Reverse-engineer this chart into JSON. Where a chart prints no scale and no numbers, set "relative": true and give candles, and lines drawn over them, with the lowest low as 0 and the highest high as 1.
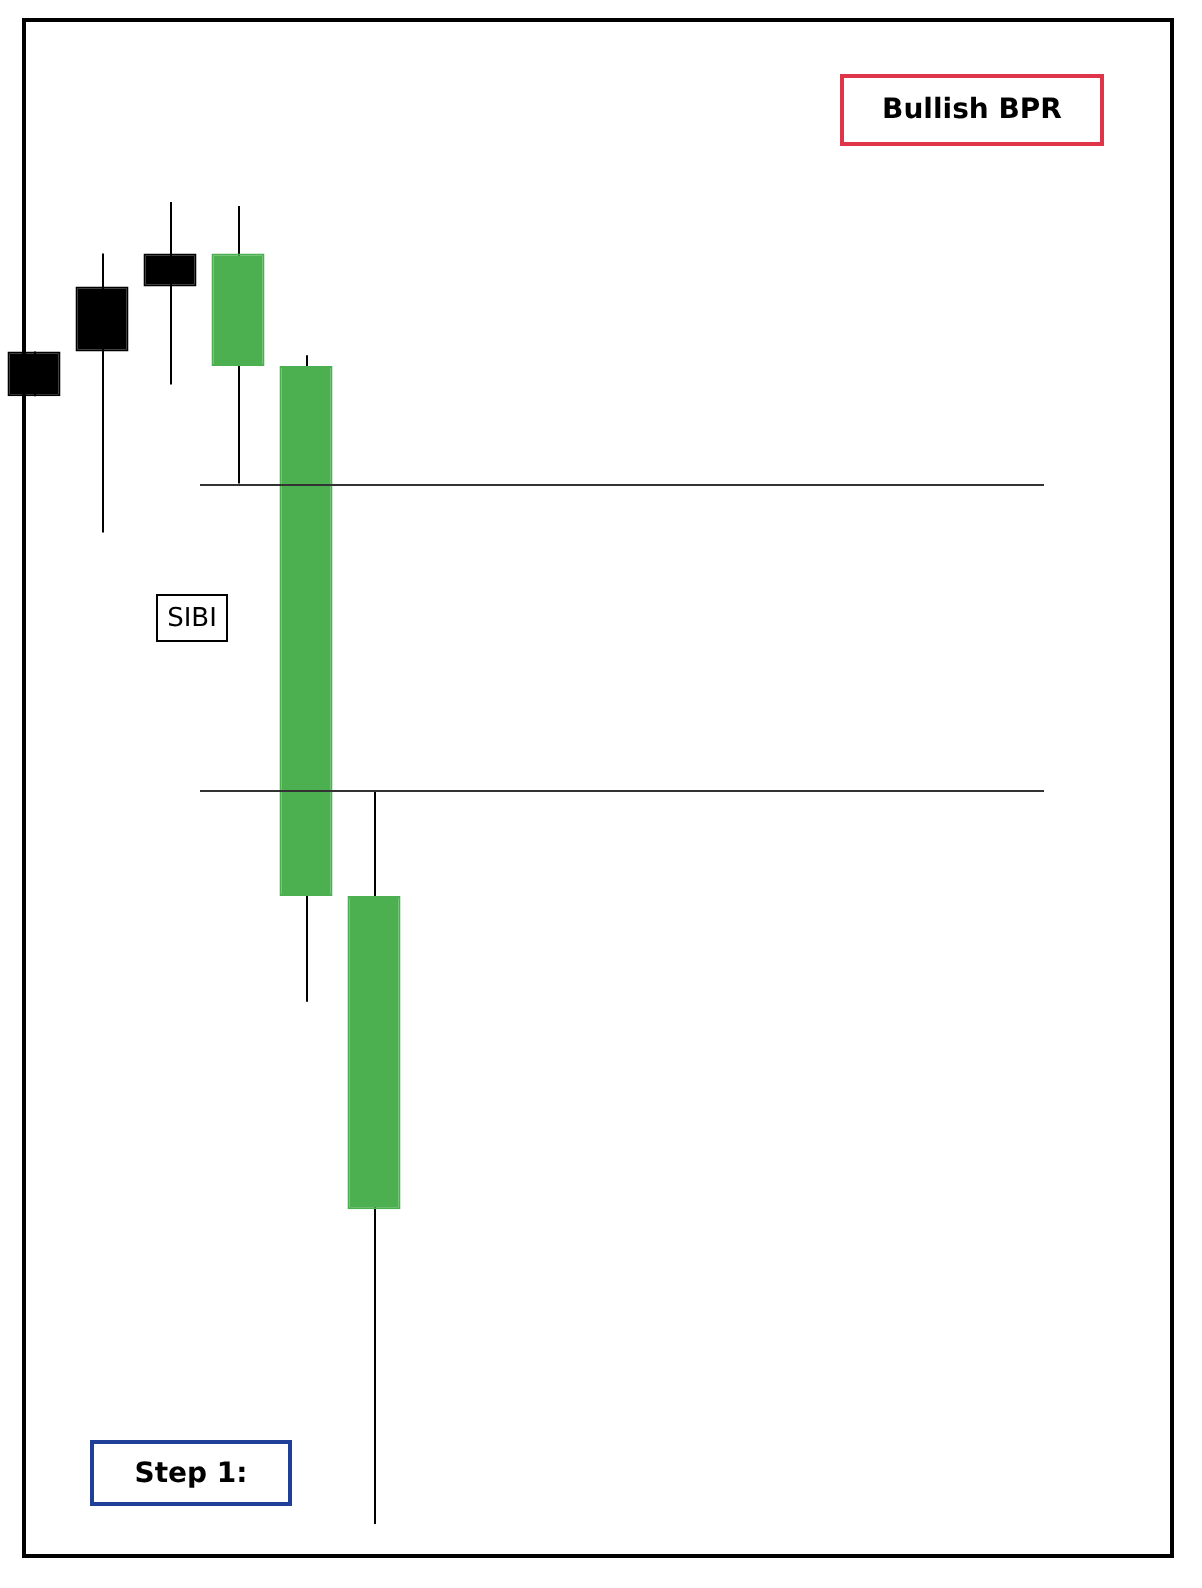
{
  "chart_data": {
    "type": "candlestick",
    "relative": true,
    "categories": [
      null,
      null,
      null,
      null,
      null,
      null
    ],
    "ohlc": [
      [
        0.853,
        0.887,
        0.853,
        0.887
      ],
      [
        0.887,
        0.961,
        0.75,
        0.936
      ],
      [
        0.936,
        1.0,
        0.862,
        0.961
      ],
      [
        0.961,
        0.997,
        0.787,
        0.876
      ],
      [
        0.876,
        0.884,
        0.395,
        0.475
      ],
      [
        0.475,
        0.555,
        0.0,
        0.238
      ]
    ],
    "colors": [
      "#000000",
      "#000000",
      "#000000",
      "#4caf50",
      "#4caf50",
      "#4caf50"
    ],
    "ref_lines": [
      {
        "axis": "y",
        "value": 0.787,
        "color": "#333333"
      },
      {
        "axis": "y",
        "value": 0.555,
        "color": "#333333"
      }
    ],
    "annotations": [
      "Bullish BPR",
      "SIBI",
      "Step 1:"
    ]
  }
}
